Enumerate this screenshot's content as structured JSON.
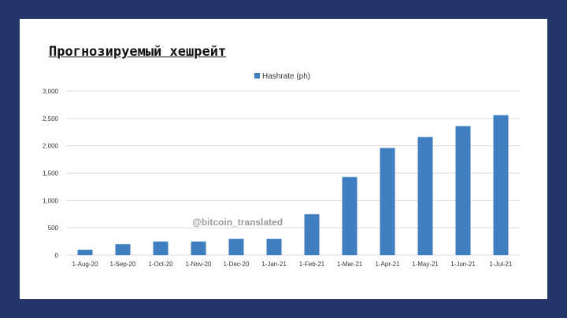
{
  "title": "Прогнозируемый хешрейт",
  "watermark": "@bitcoin_translated",
  "colors": {
    "background": "#23366a",
    "panel": "#ffffff",
    "bar": "#3f7fbf",
    "grid": "#d9d9d9",
    "axis_text": "#333333",
    "watermark": "#8a8a8a"
  },
  "chart_data": {
    "type": "bar",
    "categories": [
      "1-Aug-20",
      "1-Sep-20",
      "1-Oct-20",
      "1-Nov-20",
      "1-Dec-20",
      "1-Jan-21",
      "1-Feb-21",
      "1-Mar-21",
      "1-Apr-21",
      "1-May-21",
      "1-Jun-21",
      "1-Jul-21"
    ],
    "series": [
      {
        "name": "Hashrate (ph)",
        "values": [
          100,
          200,
          250,
          250,
          300,
          300,
          750,
          1430,
          1960,
          2160,
          2360,
          2560
        ]
      }
    ],
    "ylim": [
      0,
      3000
    ],
    "yticks": [
      0,
      500,
      1000,
      1500,
      2000,
      2500,
      3000
    ],
    "ytick_labels": [
      "0",
      "500",
      "1,000",
      "1,500",
      "2,000",
      "2,500",
      "3,000"
    ],
    "grid": true,
    "legend_position": "top-center",
    "xlabel": "",
    "ylabel": ""
  }
}
